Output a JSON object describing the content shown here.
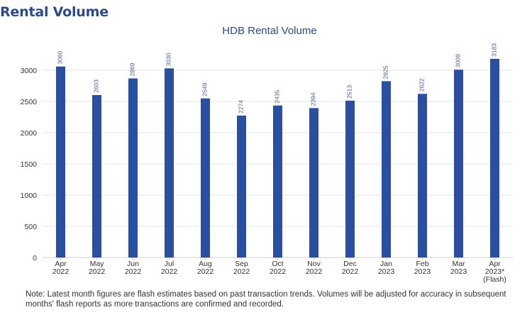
{
  "heading": "Rental Volume",
  "note": "Note: Latest month figures are flash estimates based on past transaction trends. Volumes will be adjusted for accuracy in subsequent months' flash reports as more transactions are confirmed and recorded.",
  "colors": {
    "bar": "#2a4fa0",
    "heading": "#2a4a8c",
    "grid": "#e6e6e6"
  },
  "chart_data": {
    "type": "bar",
    "title": "HDB Rental Volume",
    "xlabel": "",
    "ylabel": "",
    "ylim": [
      0,
      3000
    ],
    "yticks": [
      0,
      500,
      1000,
      1500,
      2000,
      2500,
      3000
    ],
    "grid": true,
    "legend": "none",
    "categories": [
      [
        "Apr",
        "2022"
      ],
      [
        "May",
        "2022"
      ],
      [
        "Jun",
        "2022"
      ],
      [
        "Jul",
        "2022"
      ],
      [
        "Aug",
        "2022"
      ],
      [
        "Sep",
        "2022"
      ],
      [
        "Oct",
        "2022"
      ],
      [
        "Nov",
        "2022"
      ],
      [
        "Dec",
        "2022"
      ],
      [
        "Jan",
        "2023"
      ],
      [
        "Feb",
        "2023"
      ],
      [
        "Mar",
        "2023"
      ],
      [
        "Apr",
        "2023*",
        "(Flash)"
      ]
    ],
    "values": [
      3060,
      2603,
      2869,
      3030,
      2549,
      2274,
      2435,
      2394,
      2513,
      2825,
      2622,
      3009,
      3183
    ]
  }
}
